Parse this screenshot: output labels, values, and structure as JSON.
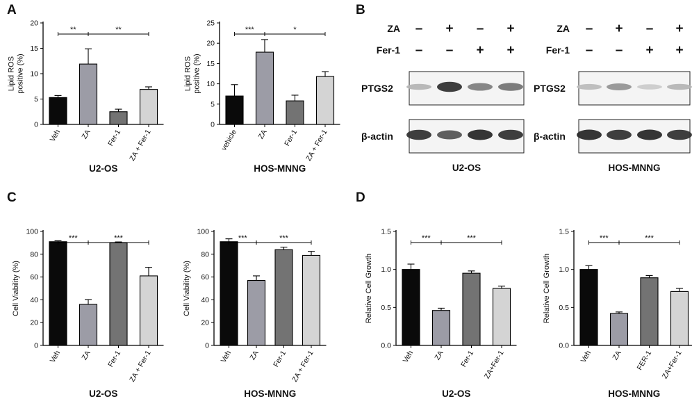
{
  "panels": {
    "A": "A",
    "B": "B",
    "C": "C",
    "D": "D"
  },
  "colors": {
    "bar1": "#0a0a0a",
    "bar2": "#9c9ca6",
    "bar3": "#737373",
    "bar4": "#d4d4d4",
    "axis": "#000000"
  },
  "chart_data": [
    {
      "id": "A-U2OS",
      "panel": "A",
      "type": "bar",
      "categories": [
        "Veh",
        "ZA",
        "Fer-1",
        "ZA + Fer-1"
      ],
      "values": [
        5.3,
        11.9,
        2.5,
        6.9
      ],
      "errors": [
        0.4,
        3.0,
        0.5,
        0.5
      ],
      "ylabel": [
        "Lipid ROS",
        "positive (%)"
      ],
      "ylim": [
        0,
        20
      ],
      "yticks": [
        0,
        5,
        10,
        15,
        20
      ],
      "xlabel": "U2-OS",
      "significance": [
        {
          "from": 0,
          "to": 1,
          "label": "**"
        },
        {
          "from": 1,
          "to": 3,
          "label": "**"
        }
      ]
    },
    {
      "id": "A-HOS",
      "panel": "A",
      "type": "bar",
      "categories": [
        "vehicle",
        "ZA",
        "Fer-1",
        "ZA + Fer-1"
      ],
      "values": [
        7.0,
        17.8,
        5.8,
        11.8
      ],
      "errors": [
        2.8,
        3.1,
        1.4,
        1.2
      ],
      "ylabel": [
        "Lipid ROS",
        "positive (%)"
      ],
      "ylim": [
        0,
        25
      ],
      "yticks": [
        0,
        5,
        10,
        15,
        20,
        25
      ],
      "xlabel": "HOS-MNNG",
      "significance": [
        {
          "from": 0,
          "to": 1,
          "label": "***"
        },
        {
          "from": 1,
          "to": 3,
          "label": "*"
        }
      ]
    },
    {
      "id": "C-U2OS",
      "panel": "C",
      "type": "bar",
      "categories": [
        "Veh",
        "ZA",
        "Fer-1",
        "ZA + Fer-1"
      ],
      "values": [
        91,
        36,
        90,
        61
      ],
      "errors": [
        0.8,
        4.2,
        0.8,
        7.5
      ],
      "ylabel": [
        "Cell Viability (%)"
      ],
      "ylim": [
        0,
        100
      ],
      "yticks": [
        0,
        20,
        40,
        60,
        80,
        100
      ],
      "xlabel": "U2-OS",
      "significance": [
        {
          "from": 0,
          "to": 1,
          "label": "***"
        },
        {
          "from": 1,
          "to": 3,
          "label": "***"
        }
      ]
    },
    {
      "id": "C-HOS",
      "panel": "C",
      "type": "bar",
      "categories": [
        "Veh",
        "ZA",
        "Fer-1",
        "ZA + Fer-1"
      ],
      "values": [
        91,
        57,
        84,
        79
      ],
      "errors": [
        2.5,
        4.0,
        2.2,
        3.5
      ],
      "ylabel": [
        "Cell Viability (%)"
      ],
      "ylim": [
        0,
        100
      ],
      "yticks": [
        0,
        20,
        40,
        60,
        80,
        100
      ],
      "xlabel": "HOS-MNNG",
      "significance": [
        {
          "from": 0,
          "to": 1,
          "label": "***"
        },
        {
          "from": 1,
          "to": 3,
          "label": "***"
        }
      ]
    },
    {
      "id": "D-U2OS",
      "panel": "D",
      "type": "bar",
      "categories": [
        "Veh",
        "ZA",
        "Fer-1",
        "ZA+Fer-1"
      ],
      "values": [
        1.0,
        0.46,
        0.95,
        0.75
      ],
      "errors": [
        0.07,
        0.03,
        0.03,
        0.03
      ],
      "ylabel": [
        "Relative Cell Growth"
      ],
      "ylim": [
        0,
        1.5
      ],
      "yticks": [
        0.0,
        0.5,
        1.0,
        1.5
      ],
      "decimals": 1,
      "xlabel": "U2-OS",
      "significance": [
        {
          "from": 0,
          "to": 1,
          "label": "***"
        },
        {
          "from": 1,
          "to": 3,
          "label": "***"
        }
      ]
    },
    {
      "id": "D-HOS",
      "panel": "D",
      "type": "bar",
      "categories": [
        "Veh",
        "ZA",
        "FER-1",
        "ZA+Fer-1"
      ],
      "values": [
        1.0,
        0.42,
        0.89,
        0.71
      ],
      "errors": [
        0.05,
        0.02,
        0.03,
        0.04
      ],
      "ylabel": [
        "Relative Cell Growth"
      ],
      "ylim": [
        0,
        1.5
      ],
      "yticks": [
        0.0,
        0.5,
        1.0,
        1.5
      ],
      "decimals": 1,
      "xlabel": "HOS-MNNG",
      "significance": [
        {
          "from": 0,
          "to": 1,
          "label": "***"
        },
        {
          "from": 1,
          "to": 3,
          "label": "***"
        }
      ]
    }
  ],
  "western_blots": [
    {
      "id": "B-U2OS",
      "treatments": [
        {
          "label": "ZA",
          "signs": [
            "-",
            "+",
            "-",
            "+"
          ]
        },
        {
          "label": "Fer-1",
          "signs": [
            "-",
            "-",
            "+",
            "+"
          ]
        }
      ],
      "proteins": [
        {
          "label": "PTGS2",
          "intensity": [
            0.25,
            0.85,
            0.5,
            0.55
          ]
        },
        {
          "label": "β-actin",
          "intensity": [
            0.85,
            0.7,
            0.9,
            0.85
          ]
        }
      ],
      "xlabel": "U2-OS"
    },
    {
      "id": "B-HOS",
      "treatments": [
        {
          "label": "ZA",
          "signs": [
            "-",
            "+",
            "-",
            "+"
          ]
        },
        {
          "label": "Fer-1",
          "signs": [
            "-",
            "-",
            "+",
            "+"
          ]
        }
      ],
      "proteins": [
        {
          "label": "PTGS2",
          "intensity": [
            0.22,
            0.4,
            0.15,
            0.25
          ]
        },
        {
          "label": "β-actin",
          "intensity": [
            0.9,
            0.85,
            0.9,
            0.85
          ]
        }
      ],
      "xlabel": "HOS-MNNG"
    }
  ]
}
